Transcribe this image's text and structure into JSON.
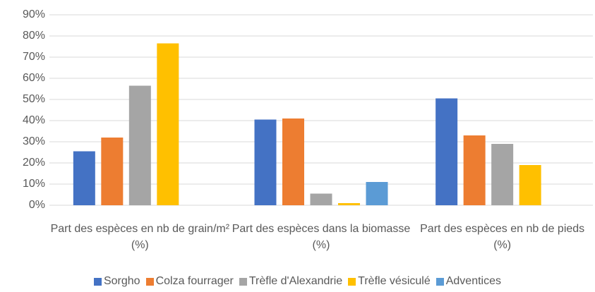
{
  "chart_data": {
    "type": "bar",
    "categories": [
      "Part des espèces en nb de grain/m² (%)",
      "Part des espèces dans la biomasse (%)",
      "Part des espèces en nb de pieds (%)"
    ],
    "series": [
      {
        "name": "Sorgho",
        "color": "#4472c4",
        "values": [
          25.5,
          40.5,
          50.5
        ]
      },
      {
        "name": "Colza fourrager",
        "color": "#ed7d31",
        "values": [
          32,
          41,
          33
        ]
      },
      {
        "name": "Trèfle d'Alexandrie",
        "color": "#a5a5a5",
        "values": [
          56.5,
          5.5,
          29
        ]
      },
      {
        "name": "Trèfle vésiculé",
        "color": "#ffc000",
        "values": [
          76.5,
          1,
          19
        ]
      },
      {
        "name": "Adventices",
        "color": "#5b9bd5",
        "values": [
          null,
          11,
          null
        ]
      }
    ],
    "ylim": [
      0,
      90
    ],
    "yticks": [
      {
        "value": 0,
        "label": "0%"
      },
      {
        "value": 10,
        "label": "10%"
      },
      {
        "value": 20,
        "label": "20%"
      },
      {
        "value": 30,
        "label": "30%"
      },
      {
        "value": 40,
        "label": "40%"
      },
      {
        "value": 50,
        "label": "50%"
      },
      {
        "value": 60,
        "label": "60%"
      },
      {
        "value": 70,
        "label": "70%"
      },
      {
        "value": 80,
        "label": "80%"
      },
      {
        "value": 90,
        "label": "90%"
      }
    ],
    "grid": true,
    "legend": "bottom"
  }
}
